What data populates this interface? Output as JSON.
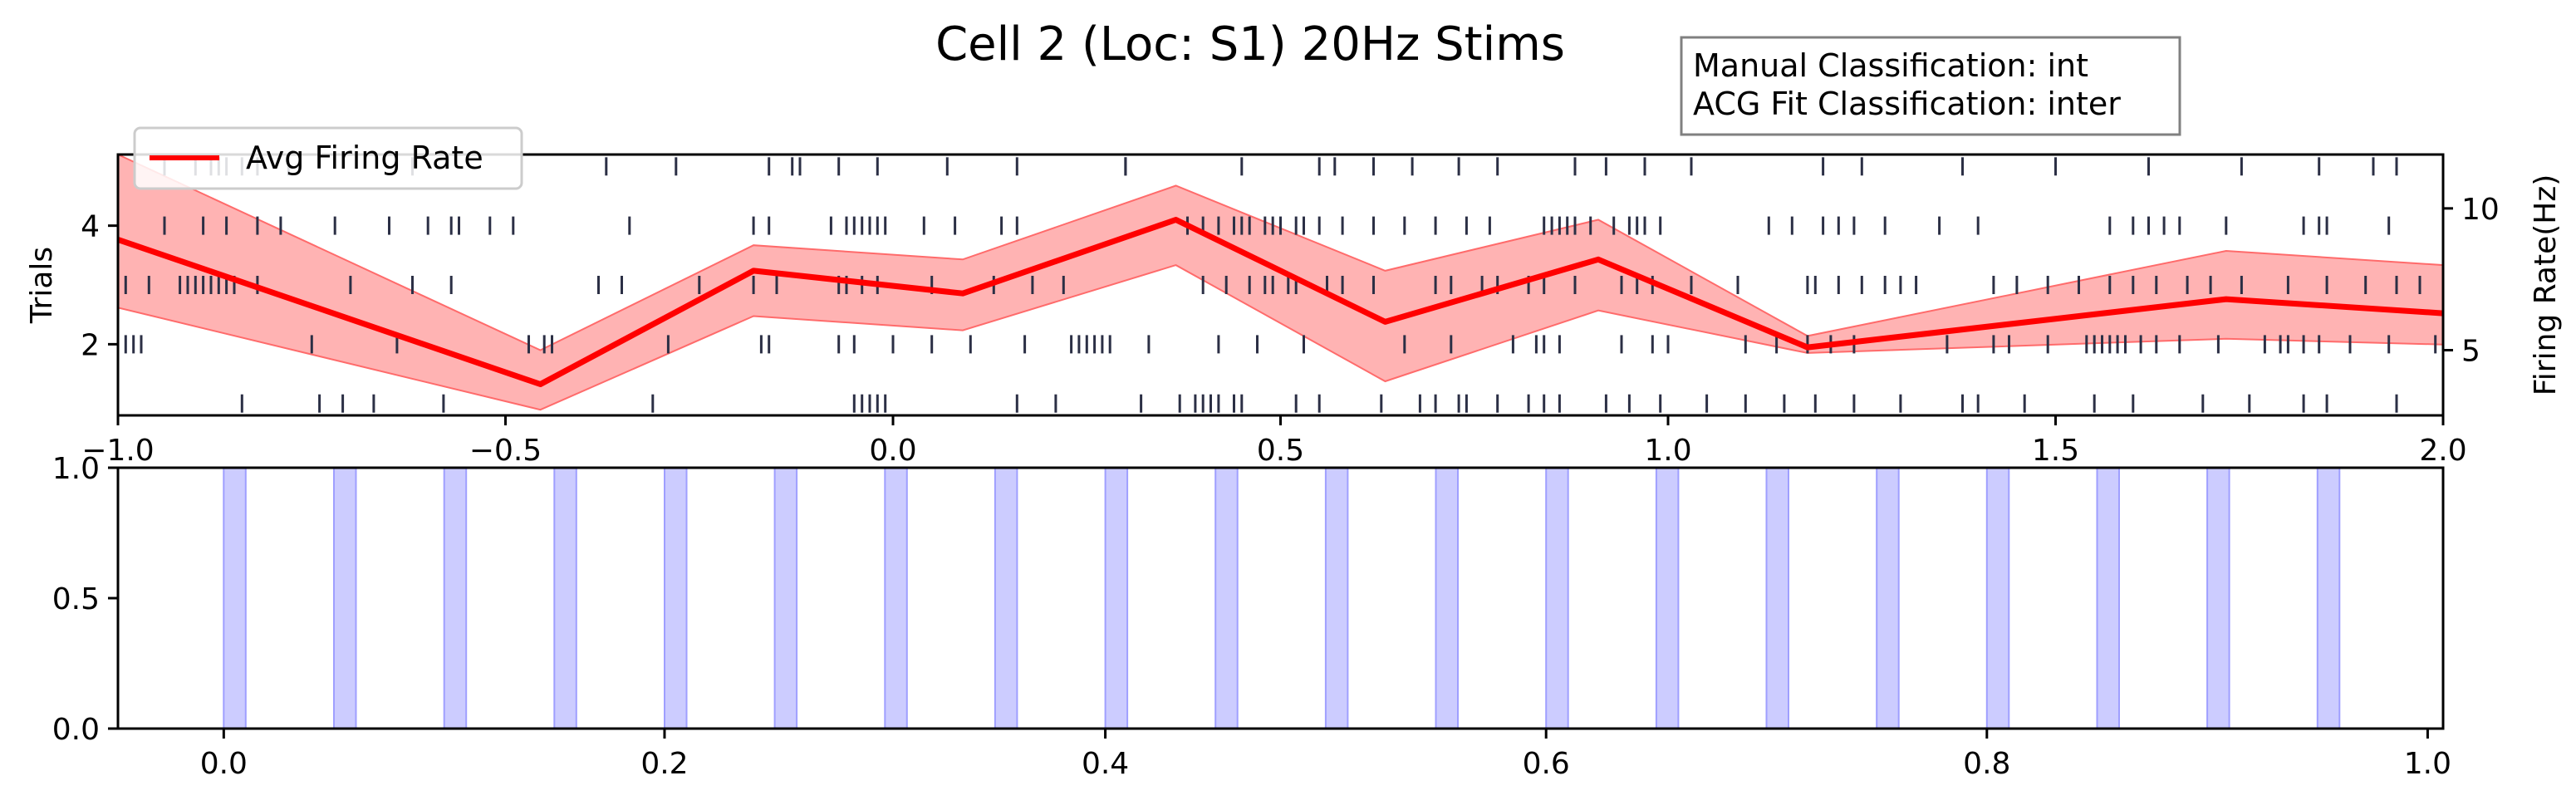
{
  "figure": {
    "title": "Cell 2 (Loc: S1) 20Hz Stims",
    "info_box": {
      "line1": "Manual Classification: int",
      "line2": "ACG Fit Classification: inter"
    },
    "legend": {
      "label": "Avg Firing Rate",
      "placement": "top-left"
    }
  },
  "colors": {
    "spike": "#2b2f45",
    "rate_line": "#ff0000",
    "rate_band": "#ff9a9a",
    "stim_fill": "#ccccff",
    "stim_edge": "#9f9fff"
  },
  "chart_data": [
    {
      "type": "raster-line",
      "title": "Cell 2 (Loc: S1) 20Hz Stims",
      "ylabel": "Trials",
      "y2label": "Firing Rate(Hz)",
      "xlim": [
        -1.0,
        2.0
      ],
      "ylim": [
        0.8,
        5.2
      ],
      "y2lim": [
        2.7,
        11.9
      ],
      "xticks": [
        "−1.0",
        "−0.5",
        "0.0",
        "0.5",
        "1.0",
        "1.5",
        "2.0"
      ],
      "xtick_values": [
        -1.0,
        -0.5,
        0.0,
        0.5,
        1.0,
        1.5,
        2.0
      ],
      "yticks": [
        "2",
        "4"
      ],
      "ytick_values": [
        2,
        4
      ],
      "y2ticks": [
        "5",
        "10"
      ],
      "y2tick_values": [
        5,
        10
      ],
      "spike_trials": [
        {
          "trial": 5,
          "times": [
            -0.94,
            -0.9,
            -0.88,
            -0.87,
            -0.86,
            -0.84,
            -0.82,
            -0.78,
            -0.62,
            -0.37,
            -0.28,
            -0.16,
            -0.12,
            -0.13,
            -0.07,
            -0.02,
            0.07,
            0.16,
            0.3,
            0.3,
            0.45,
            0.55,
            0.57,
            0.62,
            0.67,
            0.73,
            0.78,
            0.88,
            0.92,
            0.97,
            1.03,
            1.2,
            1.25,
            1.38,
            1.5,
            1.62,
            1.74,
            1.84,
            1.91,
            1.94
          ]
        },
        {
          "trial": 4,
          "times": [
            -0.94,
            -0.89,
            -0.86,
            -0.82,
            -0.79,
            -0.72,
            -0.65,
            -0.6,
            -0.57,
            -0.56,
            -0.52,
            -0.49,
            -0.34,
            -0.18,
            -0.16,
            -0.08,
            -0.06,
            -0.05,
            -0.04,
            -0.03,
            -0.02,
            -0.01,
            0.04,
            0.08,
            0.14,
            0.16,
            0.38,
            0.4,
            0.42,
            0.44,
            0.45,
            0.46,
            0.48,
            0.49,
            0.5,
            0.52,
            0.53,
            0.55,
            0.58,
            0.62,
            0.66,
            0.7,
            0.74,
            0.77,
            0.84,
            0.85,
            0.86,
            0.87,
            0.88,
            0.9,
            0.93,
            0.95,
            0.96,
            0.97,
            0.99,
            1.13,
            1.16,
            1.2,
            1.22,
            1.24,
            1.28,
            1.35,
            1.4,
            1.57,
            1.6,
            1.62,
            1.64,
            1.66,
            1.72,
            1.82,
            1.84,
            1.85,
            1.93
          ]
        },
        {
          "trial": 3,
          "times": [
            -0.99,
            -0.96,
            -0.92,
            -0.91,
            -0.9,
            -0.89,
            -0.88,
            -0.87,
            -0.86,
            -0.85,
            -0.82,
            -0.7,
            -0.62,
            -0.57,
            -0.38,
            -0.35,
            -0.25,
            -0.18,
            -0.15,
            -0.07,
            -0.06,
            -0.04,
            -0.02,
            0.05,
            0.13,
            0.18,
            0.22,
            0.4,
            0.43,
            0.46,
            0.48,
            0.49,
            0.51,
            0.52,
            0.56,
            0.58,
            0.62,
            0.7,
            0.72,
            0.76,
            0.78,
            0.82,
            0.84,
            0.88,
            0.94,
            0.96,
            0.98,
            1.03,
            1.09,
            1.18,
            1.19,
            1.22,
            1.25,
            1.28,
            1.3,
            1.32,
            1.42,
            1.45,
            1.49,
            1.53,
            1.57,
            1.6,
            1.63,
            1.67,
            1.7,
            1.74,
            1.8,
            1.85,
            1.9,
            1.94,
            1.97
          ]
        },
        {
          "trial": 2,
          "times": [
            -0.99,
            -0.98,
            -0.97,
            -0.75,
            -0.64,
            -0.47,
            -0.45,
            -0.44,
            -0.29,
            -0.17,
            -0.16,
            -0.07,
            -0.05,
            0.0,
            0.05,
            0.1,
            0.17,
            0.23,
            0.24,
            0.25,
            0.26,
            0.27,
            0.28,
            0.33,
            0.42,
            0.47,
            0.53,
            0.66,
            0.72,
            0.8,
            0.83,
            0.84,
            0.86,
            0.94,
            0.98,
            1.0,
            1.1,
            1.14,
            1.18,
            1.21,
            1.24,
            1.36,
            1.42,
            1.44,
            1.49,
            1.54,
            1.55,
            1.56,
            1.57,
            1.58,
            1.59,
            1.61,
            1.63,
            1.66,
            1.71,
            1.77,
            1.79,
            1.8,
            1.82,
            1.84,
            1.88,
            1.93,
            1.99
          ]
        },
        {
          "trial": 1,
          "times": [
            -0.84,
            -0.74,
            -0.71,
            -0.67,
            -0.58,
            -0.31,
            -0.05,
            -0.04,
            -0.03,
            -0.02,
            -0.01,
            0.16,
            0.21,
            0.32,
            0.37,
            0.39,
            0.4,
            0.41,
            0.42,
            0.44,
            0.45,
            0.52,
            0.55,
            0.63,
            0.68,
            0.7,
            0.73,
            0.74,
            0.78,
            0.82,
            0.84,
            0.86,
            0.92,
            0.95,
            0.99,
            1.05,
            1.1,
            1.15,
            1.19,
            1.24,
            1.3,
            1.38,
            1.4,
            1.46,
            1.55,
            1.6,
            1.69,
            1.75,
            1.82,
            1.85,
            1.94
          ]
        }
      ],
      "series": [
        {
          "name": "Avg Firing Rate",
          "x": [
            -1.0,
            -0.455,
            -0.18,
            0.09,
            0.365,
            0.635,
            0.91,
            1.18,
            1.72,
            2.0
          ],
          "y": [
            8.9,
            3.8,
            7.8,
            7.0,
            9.6,
            6.0,
            8.2,
            5.1,
            6.8,
            6.3
          ],
          "lower": [
            6.5,
            2.9,
            6.2,
            5.7,
            8.0,
            3.9,
            6.4,
            4.9,
            5.4,
            5.2
          ],
          "upper": [
            12.6,
            5.0,
            8.7,
            8.2,
            10.8,
            7.8,
            9.6,
            5.5,
            8.5,
            8.0
          ]
        }
      ],
      "legend": "top-left"
    },
    {
      "type": "bar",
      "xlim": [
        -0.048,
        1.007
      ],
      "ylim": [
        0.0,
        1.0
      ],
      "xticks": [
        "0.0",
        "0.2",
        "0.4",
        "0.6",
        "0.8",
        "1.0"
      ],
      "xtick_values": [
        0.0,
        0.2,
        0.4,
        0.6,
        0.8,
        1.0
      ],
      "yticks": [
        "0.0",
        "0.5",
        "1.0"
      ],
      "ytick_values": [
        0.0,
        0.5,
        1.0
      ],
      "stim_width": 0.01,
      "stim_starts": [
        0.0,
        0.05,
        0.1,
        0.15,
        0.2,
        0.25,
        0.3,
        0.35,
        0.4,
        0.45,
        0.5,
        0.55,
        0.6,
        0.65,
        0.7,
        0.75,
        0.8,
        0.85,
        0.9,
        0.95
      ],
      "values": [
        1,
        1,
        1,
        1,
        1,
        1,
        1,
        1,
        1,
        1,
        1,
        1,
        1,
        1,
        1,
        1,
        1,
        1,
        1,
        1
      ]
    }
  ]
}
